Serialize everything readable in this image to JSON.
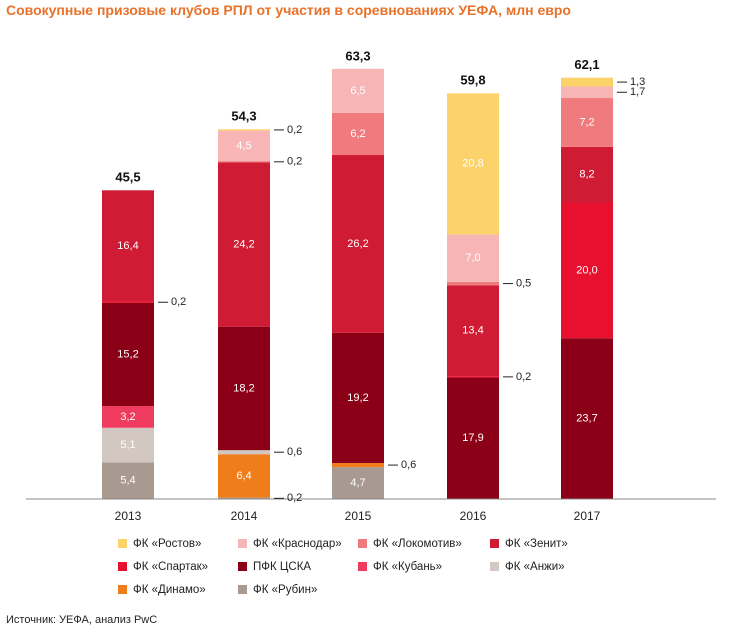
{
  "chart_data": {
    "type": "bar",
    "stacked": true,
    "title": "Совокупные призовые клубов РПЛ от участия в соревнованиях УЕФА, млн евро",
    "xlabel": "",
    "ylabel": "",
    "ylim": [
      0,
      65
    ],
    "categories": [
      "2013",
      "2014",
      "2015",
      "2016",
      "2017"
    ],
    "totals": [
      "45,5",
      "54,3",
      "63,3",
      "59,8",
      "62,1"
    ],
    "series": [
      {
        "name": "ФК «Рубин»",
        "color": "#a89a91",
        "values": [
          5.4,
          0.2,
          4.7,
          0,
          0
        ]
      },
      {
        "name": "ФК «Динамо»",
        "color": "#ef7d1a",
        "values": [
          0,
          6.4,
          0.6,
          0,
          0
        ]
      },
      {
        "name": "ФК «Анжи»",
        "color": "#d2c7c1",
        "values": [
          5.1,
          0.6,
          0,
          0,
          0
        ]
      },
      {
        "name": "ФК «Кубань»",
        "color": "#ee3b5e",
        "values": [
          3.2,
          0,
          0,
          0,
          0
        ]
      },
      {
        "name": "ПФК ЦСКА",
        "color": "#8b0016",
        "values": [
          15.2,
          18.2,
          19.2,
          17.9,
          23.7
        ]
      },
      {
        "name": "ФК «Спартак»",
        "color": "#e8102f",
        "values": [
          0.2,
          0,
          0,
          0.2,
          20.0
        ]
      },
      {
        "name": "ФК «Зенит»",
        "color": "#cf1b33",
        "values": [
          16.4,
          24.2,
          26.2,
          13.4,
          8.2
        ]
      },
      {
        "name": "ФК «Локомотив»",
        "color": "#f07b7e",
        "values": [
          0,
          0.2,
          6.2,
          0.5,
          7.2
        ]
      },
      {
        "name": "ФК «Краснодар»",
        "color": "#f8b5b6",
        "values": [
          0,
          4.5,
          6.5,
          7.0,
          1.7
        ]
      },
      {
        "name": "ФК «Ростов»",
        "color": "#fcd26a",
        "values": [
          0,
          0.2,
          0,
          20.8,
          1.3
        ]
      }
    ],
    "segment_labels": [
      [
        "5,4",
        "",
        "5,1",
        "3,2",
        "15,2",
        "0,2",
        "16,4",
        "",
        "",
        ""
      ],
      [
        "0,2",
        "6,4",
        "0,6",
        "",
        "18,2",
        "",
        "24,2",
        "0,2",
        "4,5",
        "0,2"
      ],
      [
        "4,7",
        "0,6",
        "",
        "",
        "19,2",
        "",
        "26,2",
        "6,2",
        "6,5",
        ""
      ],
      [
        "",
        "",
        "",
        "",
        "17,9",
        "0,2",
        "13,4",
        "0,5",
        "7,0",
        "20,8"
      ],
      [
        "",
        "",
        "",
        "",
        "23,7",
        "20,0",
        "8,2",
        "7,2",
        "1,7",
        "1,3"
      ]
    ],
    "legend_placement": "bottom",
    "legend_order": [
      "ФК «Ростов»",
      "ФК «Краснодар»",
      "ФК «Локомотив»",
      "ФК «Зенит»",
      "ФК «Спартак»",
      "ПФК ЦСКА",
      "ФК «Кубань»",
      "ФК «Анжи»",
      "ФК «Динамо»",
      "ФК «Рубин»"
    ],
    "grid": false
  },
  "source": "Источник: УЕФА, анализ PwC"
}
